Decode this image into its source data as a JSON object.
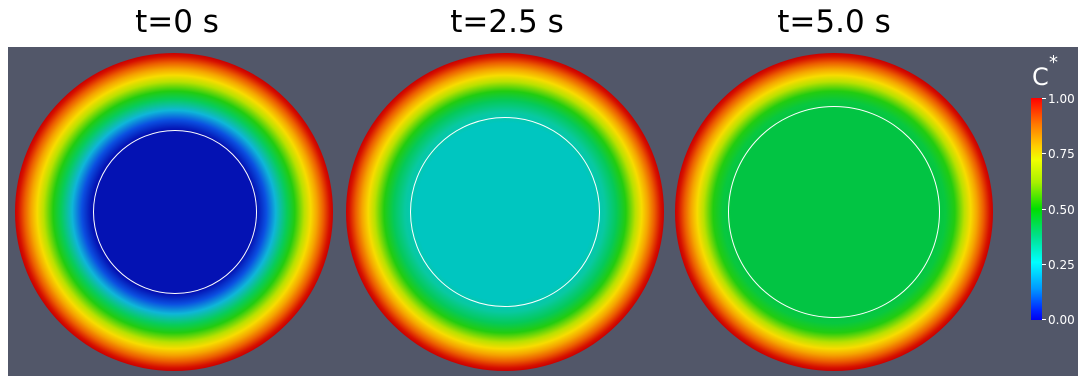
{
  "titles": [
    "t=0 s",
    "t=2.5 s",
    "t=5.0 s"
  ],
  "colorbar": {
    "label": "C",
    "superscript": "*",
    "ticks": [
      "1.00",
      "0.75",
      "0.50",
      "0.25",
      "0.00"
    ],
    "colormap": [
      "#ff0000",
      "#ffd000",
      "#00dd00",
      "#00ffff",
      "#0000f0"
    ]
  },
  "colors": {
    "background": "#525769",
    "core_t0": "#0412b3",
    "core_t2_5": "#00c6c0",
    "core_t5": "#02c443",
    "outer_rim": "#c80000",
    "interface_circle": "#ffffff"
  }
}
